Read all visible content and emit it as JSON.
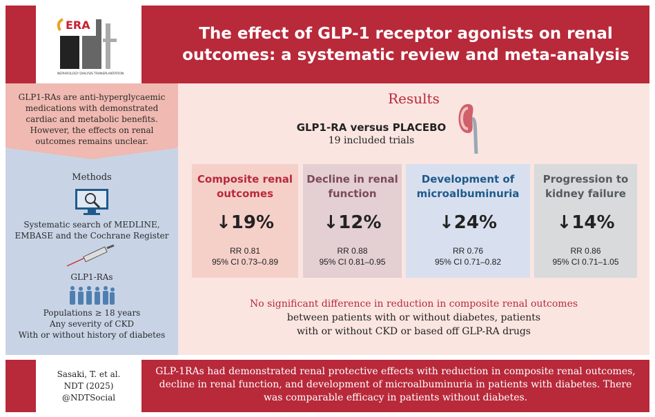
{
  "header": {
    "logo_text": "ERA ndt",
    "logo_subtext": "NEPHROLOGY DIALYSIS TRANSPLANTATION",
    "title": "The effect of GLP-1 receptor agonists on renal outcomes: a systematic review and meta-analysis"
  },
  "intro": "GLP1-RAs are anti-hyperglycaemic medications with demonstrated cardiac and metabolic benefits. However, the effects on renal outcomes remains unclear.",
  "methods": {
    "heading": "Methods",
    "search": "Systematic search of MEDLINE, EMBASE and the Cochrane Register",
    "drug": "GLP1-RAs",
    "population": [
      "Populations ≥ 18 years",
      "Any severity of CKD",
      "With or without history of diabetes"
    ]
  },
  "results": {
    "heading": "Results",
    "comparison": "GLP1-RA versus PLACEBO",
    "trials": "19 included trials",
    "cards": [
      {
        "title": "Composite renal outcomes",
        "value": "↓19%",
        "rr": "RR 0.81",
        "ci": "95% CI 0.73–0.89",
        "bg": "#f5d0c9",
        "color": "#b8293a"
      },
      {
        "title": "Decline in renal function",
        "value": "↓12%",
        "rr": "RR 0.88",
        "ci": "95% CI 0.81–0.95",
        "bg": "#e4cfd2",
        "color": "#7a4a5a"
      },
      {
        "title": "Development of microalbuminuria",
        "value": "↓24%",
        "rr": "RR 0.76",
        "ci": "95% CI 0.71–0.82",
        "bg": "#d8e0ef",
        "color": "#1f5a8a"
      },
      {
        "title": "Progression to kidney failure",
        "value": "↓14%",
        "rr": "RR 0.86",
        "ci": "95% CI 0.71–1.05",
        "bg": "#d8dadb",
        "color": "#555a5e"
      }
    ],
    "note_highlight": "No significant difference in reduction in composite renal outcomes",
    "note_rest": "between patients with or without diabetes, patients with or without CKD or based off GLP-RA drugs"
  },
  "footer": {
    "citation": [
      "Sasaki, T. et al.",
      "NDT (2025)",
      "@NDTSocial"
    ],
    "conclusion": "GLP-1RAs had demonstrated renal protective effects with reduction in composite renal outcomes, decline in renal function, and development of microalbuminuria in patients with diabetes. There was comparable efficacy in patients without diabetes."
  }
}
